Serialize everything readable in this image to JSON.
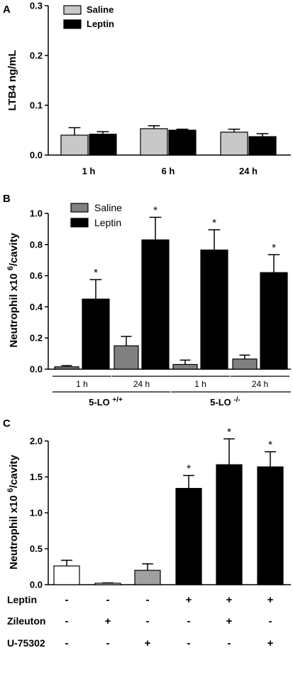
{
  "panels": {
    "a": {
      "label": "A"
    },
    "b": {
      "label": "B"
    },
    "c": {
      "label": "C"
    }
  },
  "chart_data": [
    {
      "type": "bar",
      "panel": "A",
      "ylabel": "LTB4 ng/mL",
      "ylim": [
        0,
        0.3
      ],
      "yticks": [
        "0.0",
        "0.1",
        "0.2",
        "0.3"
      ],
      "categories": [
        "1 h",
        "6 h",
        "24 h"
      ],
      "legend": {
        "position": "top-left",
        "entries": [
          "Saline",
          "Leptin"
        ]
      },
      "series": [
        {
          "name": "Saline",
          "color": "#c8c8c8",
          "values": [
            0.04,
            0.053,
            0.046
          ],
          "errors": [
            0.015,
            0.006,
            0.006
          ]
        },
        {
          "name": "Leptin",
          "color": "#000000",
          "values": [
            0.042,
            0.05,
            0.037
          ],
          "errors": [
            0.005,
            0.002,
            0.006
          ]
        }
      ]
    },
    {
      "type": "bar",
      "panel": "B",
      "ylabel": "Neutrophil x10 6/cavity",
      "ylim": [
        0,
        1.0
      ],
      "yticks": [
        "0.0",
        "0.2",
        "0.4",
        "0.6",
        "0.8",
        "1.0"
      ],
      "categories": [
        "1 h",
        "24 h",
        "1 h",
        "24 h"
      ],
      "groups": [
        {
          "label": "5-LO",
          "sup": "+/+"
        },
        {
          "label": "5-LO",
          "sup": "-/-"
        }
      ],
      "legend": {
        "position": "top-left",
        "entries": [
          "Saline",
          "Leptin"
        ]
      },
      "series": [
        {
          "name": "Saline",
          "color": "#808080",
          "values": [
            0.015,
            0.15,
            0.03,
            0.065
          ],
          "errors": [
            0.008,
            0.06,
            0.028,
            0.025
          ],
          "stars": [
            false,
            false,
            false,
            false
          ]
        },
        {
          "name": "Leptin",
          "color": "#000000",
          "values": [
            0.45,
            0.83,
            0.765,
            0.62
          ],
          "errors": [
            0.125,
            0.145,
            0.13,
            0.115
          ],
          "stars": [
            true,
            true,
            true,
            true
          ]
        }
      ],
      "star_symbol": "*"
    },
    {
      "type": "bar",
      "panel": "C",
      "ylabel": "Neutrophil x10 6/cavity",
      "ylim": [
        0,
        2.0
      ],
      "yticks": [
        "0.0",
        "0.5",
        "1.0",
        "1.5",
        "2.0"
      ],
      "bars": [
        {
          "value": 0.26,
          "error": 0.08,
          "color": "#ffffff",
          "star": false
        },
        {
          "value": 0.02,
          "error": 0.005,
          "color": "#ffffff",
          "star": false
        },
        {
          "value": 0.2,
          "error": 0.09,
          "color": "#a0a0a0",
          "star": false
        },
        {
          "value": 1.34,
          "error": 0.18,
          "color": "#000000",
          "star": true
        },
        {
          "value": 1.67,
          "error": 0.36,
          "color": "#000000",
          "star": true
        },
        {
          "value": 1.64,
          "error": 0.21,
          "color": "#000000",
          "star": true
        }
      ],
      "star_symbol": "*",
      "treatment_table": [
        {
          "name": "Leptin",
          "signs": [
            "-",
            "-",
            "-",
            "+",
            "+",
            "+"
          ]
        },
        {
          "name": "Zileuton",
          "signs": [
            "-",
            "+",
            "-",
            "-",
            "+",
            "-"
          ]
        },
        {
          "name": "U-75302",
          "signs": [
            "-",
            "-",
            "+",
            "-",
            "-",
            "+"
          ]
        }
      ]
    }
  ]
}
